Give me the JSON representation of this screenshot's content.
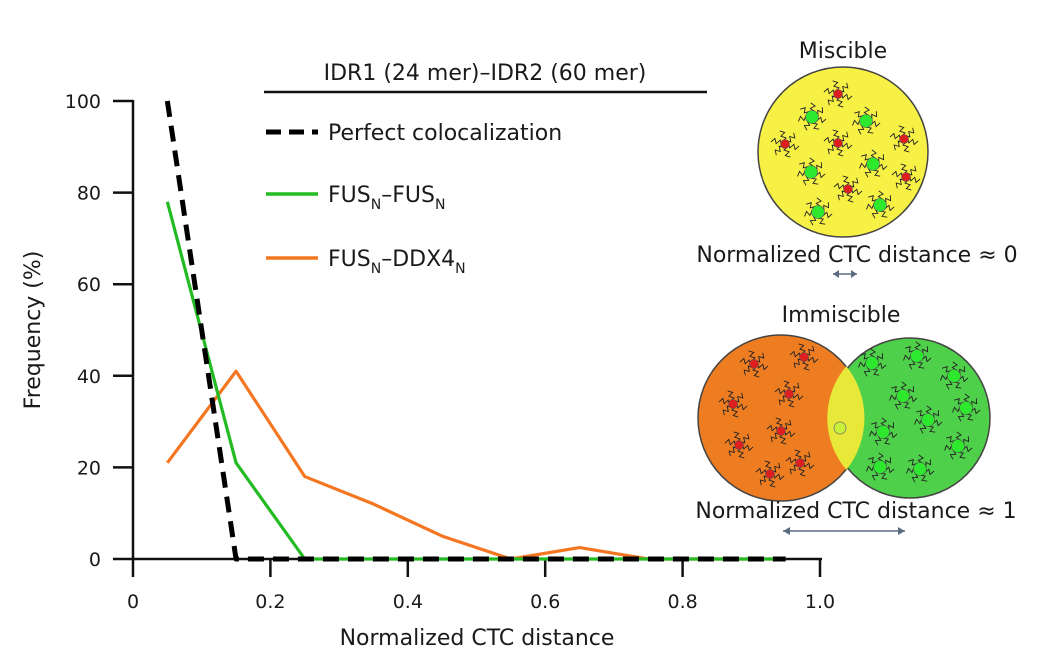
{
  "chart_data": {
    "type": "line",
    "title": "IDR1 (24 mer)–IDR2 (60 mer)",
    "xlabel": "Normalized CTC distance",
    "ylabel": "Frequency (%)",
    "xlim": [
      0,
      1.0
    ],
    "ylim": [
      0,
      100
    ],
    "xticks": [
      "0",
      "0.2",
      "0.4",
      "0.6",
      "0.8",
      "1.0"
    ],
    "yticks": [
      "0",
      "20",
      "40",
      "60",
      "80",
      "100"
    ],
    "series": [
      {
        "name": "Perfect colocalization",
        "style": "dashed",
        "color": "#000000",
        "x": [
          0.05,
          0.15,
          0.25,
          0.35,
          0.45,
          0.55,
          0.65,
          0.75,
          0.85,
          0.95
        ],
        "values": [
          100,
          0,
          0,
          0,
          0,
          0,
          0,
          0,
          0,
          0
        ]
      },
      {
        "name": "FUSN–FUSN",
        "legend_parts": [
          "FUS",
          "N",
          "–FUS",
          "N"
        ],
        "style": "solid",
        "color": "#22bb22",
        "x": [
          0.05,
          0.15,
          0.25,
          0.35,
          0.45,
          0.55,
          0.65,
          0.75,
          0.85,
          0.95
        ],
        "values": [
          78,
          21,
          0,
          0,
          0,
          0,
          0,
          0,
          0,
          0
        ]
      },
      {
        "name": "FUSN–DDX4N",
        "legend_parts": [
          "FUS",
          "N",
          "–DDX4",
          "N"
        ],
        "style": "solid",
        "color": "#f47621",
        "x": [
          0.05,
          0.15,
          0.25,
          0.35,
          0.45,
          0.55,
          0.65,
          0.75,
          0.85,
          0.95
        ],
        "values": [
          21,
          41,
          18,
          12,
          5,
          0,
          2.5,
          0,
          0,
          0
        ]
      }
    ]
  },
  "schematic": {
    "miscible_title": "Miscible",
    "miscible_caption": "Normalized CTC distance ≈ 0",
    "immiscible_title": "Immiscible",
    "immiscible_caption": "Normalized CTC distance ≈ 1",
    "colors": {
      "miscible_fill": "#f7f146",
      "orange_fill": "#ee7d22",
      "green_fill": "#4fd04a",
      "overlap_fill": "#e8e838",
      "red_node": "#dd1f1f",
      "green_node": "#2ee82e",
      "arrow": "#5a6a80"
    }
  }
}
